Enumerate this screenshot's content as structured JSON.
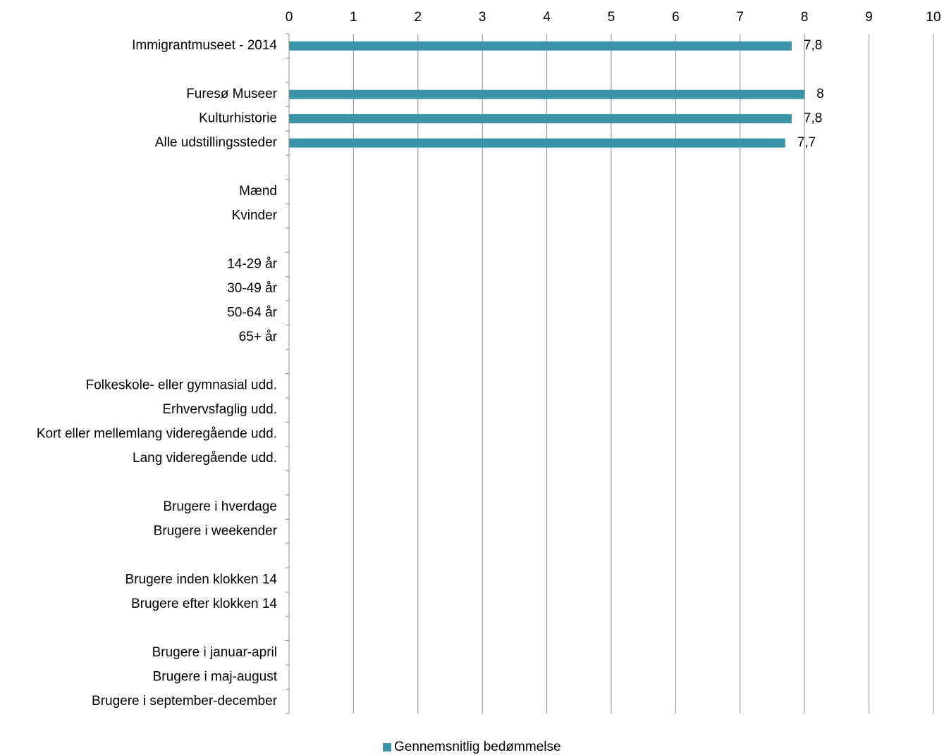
{
  "chart_data": {
    "type": "bar",
    "orientation": "horizontal",
    "title": "",
    "xlabel": "",
    "ylabel": "",
    "xlim": [
      0,
      10
    ],
    "x_ticks": [
      "0",
      "1",
      "2",
      "3",
      "4",
      "5",
      "6",
      "7",
      "8",
      "9",
      "10"
    ],
    "x_axis_position": "top",
    "grid": "vertical",
    "legend_position": "bottom",
    "categories": [
      "Immigrantmuseet - 2014",
      "",
      "Furesø Museer",
      "Kulturhistorie",
      "Alle udstillingssteder",
      "",
      "Mænd",
      "Kvinder",
      "",
      "14-29 år",
      "30-49 år",
      "50-64 år",
      "65+ år",
      "",
      "Folkeskole- eller gymnasial udd.",
      "Erhvervsfaglig udd.",
      "Kort eller mellemlang videregående udd.",
      "Lang videregående udd.",
      "",
      "Brugere i hverdage",
      "Brugere i weekender",
      "",
      "Brugere inden klokken 14",
      "Brugere efter klokken 14",
      "",
      "Brugere i januar-april",
      "Brugere i maj-august",
      "Brugere i september-december"
    ],
    "series": [
      {
        "name": "Gennemsnitlig bedømmelse",
        "color": "#3a93a6",
        "values": [
          7.8,
          null,
          8,
          7.8,
          7.7,
          null,
          null,
          null,
          null,
          null,
          null,
          null,
          null,
          null,
          null,
          null,
          null,
          null,
          null,
          null,
          null,
          null,
          null,
          null,
          null,
          null,
          null,
          null
        ],
        "labels": [
          "7,8",
          "",
          "8",
          "7,8",
          "7,7",
          "",
          "",
          "",
          "",
          "",
          "",
          "",
          "",
          "",
          "",
          "",
          "",
          "",
          "",
          "",
          "",
          "",
          "",
          "",
          "",
          "",
          "",
          ""
        ]
      }
    ]
  }
}
